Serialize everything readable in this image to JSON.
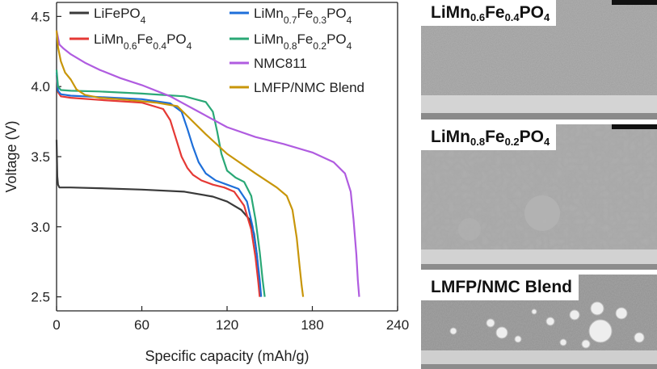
{
  "chart_data": {
    "type": "line",
    "xlabel": "Specific capacity (mAh/g)",
    "ylabel": "Voltage (V)",
    "xlim": [
      0,
      240
    ],
    "ylim": [
      2.4,
      4.6
    ],
    "x_ticks": [
      "0",
      "60",
      "120",
      "180",
      "240"
    ],
    "y_ticks": [
      "2.5",
      "3.0",
      "3.5",
      "4.0",
      "4.5"
    ],
    "grid": false,
    "legend": "top",
    "series": [
      {
        "name": "LiFePO",
        "name_sub": "4",
        "color": "#3a3a3a",
        "x": [
          0,
          0.5,
          1,
          2,
          4,
          10,
          30,
          60,
          90,
          110,
          120,
          130,
          136,
          139,
          141,
          142,
          143,
          143.5
        ],
        "y": [
          3.62,
          3.36,
          3.3,
          3.28,
          3.28,
          3.28,
          3.275,
          3.265,
          3.25,
          3.215,
          3.18,
          3.12,
          3.05,
          2.95,
          2.8,
          2.68,
          2.57,
          2.5
        ]
      },
      {
        "name": "LiMn",
        "name_parts": [
          "LiMn",
          "0.6",
          "Fe",
          "0.4",
          "PO",
          "4"
        ],
        "color": "#e53935",
        "x": [
          0,
          1,
          3,
          10,
          30,
          60,
          75,
          80,
          84,
          88,
          92,
          96,
          102,
          110,
          118,
          125,
          132,
          137,
          140,
          142,
          143
        ],
        "y": [
          4.08,
          3.96,
          3.93,
          3.92,
          3.905,
          3.885,
          3.84,
          3.76,
          3.63,
          3.5,
          3.42,
          3.37,
          3.33,
          3.3,
          3.28,
          3.25,
          3.15,
          2.98,
          2.78,
          2.6,
          2.5
        ]
      },
      {
        "name": "LiMn",
        "name_parts": [
          "LiMn",
          "0.7",
          "Fe",
          "0.3",
          "PO",
          "4"
        ],
        "color": "#1e6fd9",
        "x": [
          0,
          1,
          3,
          10,
          30,
          60,
          80,
          88,
          92,
          96,
          100,
          105,
          112,
          120,
          128,
          134,
          138,
          141,
          143,
          144
        ],
        "y": [
          4.1,
          3.97,
          3.945,
          3.935,
          3.925,
          3.91,
          3.88,
          3.82,
          3.7,
          3.57,
          3.46,
          3.38,
          3.33,
          3.3,
          3.27,
          3.18,
          3.0,
          2.8,
          2.62,
          2.5
        ]
      },
      {
        "name": "LiMn",
        "name_parts": [
          "LiMn",
          "0.8",
          "Fe",
          "0.2",
          "PO",
          "4"
        ],
        "color": "#2aa876",
        "x": [
          0,
          1,
          3,
          10,
          30,
          60,
          90,
          105,
          110,
          113,
          116,
          120,
          126,
          132,
          137,
          140,
          143,
          145,
          146.5
        ],
        "y": [
          4.12,
          4.0,
          3.975,
          3.97,
          3.965,
          3.95,
          3.93,
          3.89,
          3.82,
          3.68,
          3.52,
          3.4,
          3.35,
          3.32,
          3.22,
          3.05,
          2.82,
          2.62,
          2.5
        ]
      },
      {
        "name": "NMC811",
        "color": "#b05ce0",
        "x": [
          0,
          2,
          5,
          10,
          20,
          30,
          45,
          60,
          80,
          100,
          120,
          140,
          160,
          180,
          195,
          203,
          207,
          209,
          211,
          212,
          213
        ],
        "y": [
          4.4,
          4.3,
          4.27,
          4.23,
          4.17,
          4.12,
          4.06,
          4.01,
          3.93,
          3.82,
          3.71,
          3.64,
          3.59,
          3.53,
          3.46,
          3.38,
          3.25,
          3.05,
          2.8,
          2.62,
          2.5
        ]
      },
      {
        "name": "LMFP/NMC Blend",
        "color": "#c8960a",
        "x": [
          0,
          1,
          3,
          6,
          10,
          14,
          20,
          30,
          50,
          70,
          85,
          95,
          105,
          120,
          140,
          155,
          162,
          166,
          169,
          171,
          172.5,
          173.5
        ],
        "y": [
          4.4,
          4.28,
          4.18,
          4.1,
          4.05,
          3.98,
          3.94,
          3.92,
          3.905,
          3.885,
          3.86,
          3.76,
          3.66,
          3.52,
          3.38,
          3.28,
          3.22,
          3.12,
          2.92,
          2.72,
          2.58,
          2.5
        ]
      }
    ]
  },
  "panels": [
    {
      "parts": [
        "LiMn",
        "0.6",
        "Fe",
        "0.4",
        "PO",
        "4"
      ]
    },
    {
      "parts": [
        "LiMn",
        "0.8",
        "Fe",
        "0.2",
        "PO",
        "4"
      ]
    },
    {
      "label": "LMFP/NMC Blend"
    }
  ]
}
